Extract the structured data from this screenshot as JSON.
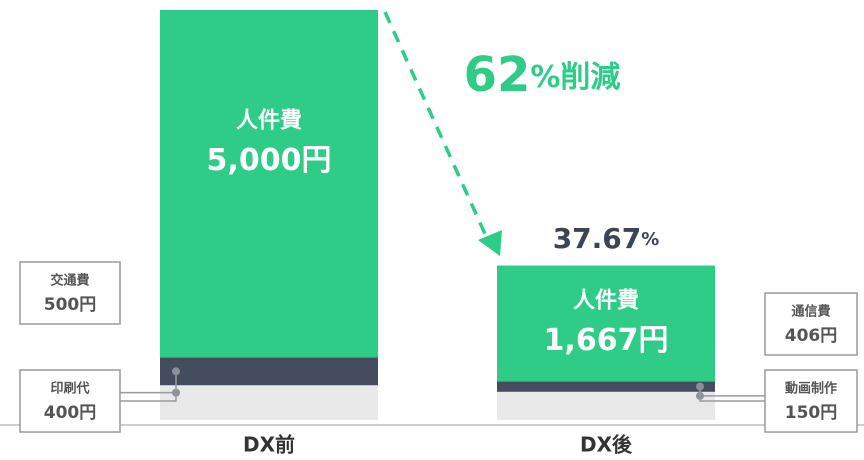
{
  "chart_data": {
    "type": "stacked_bar",
    "categories": [
      "DX前",
      "DX後"
    ],
    "series": [
      {
        "labels": [
          "交通費",
          "通信費"
        ],
        "color": "#e9e9e9",
        "values": [
          500,
          406
        ],
        "value_labels": [
          "500円",
          "406円"
        ]
      },
      {
        "labels": [
          "印刷代",
          "動画制作"
        ],
        "color": "#454c5e",
        "values": [
          400,
          150
        ],
        "value_labels": [
          "400円",
          "150円"
        ]
      },
      {
        "labels": [
          "人件費",
          "人件費"
        ],
        "color": "#2ecc87",
        "values": [
          5000,
          1667
        ],
        "value_labels": [
          "5,000円",
          "1,667円"
        ]
      }
    ],
    "annotations": {
      "reduction": "62%削減",
      "share": "37.67%"
    }
  }
}
